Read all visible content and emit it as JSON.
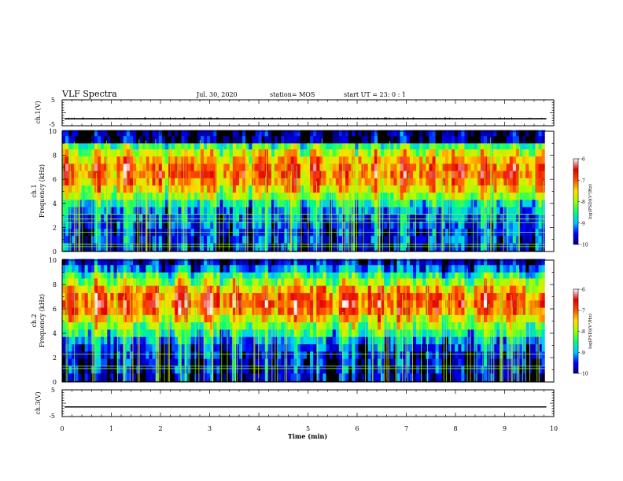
{
  "header": {
    "title": "VLF Spectra",
    "date": "Jul. 30, 2020",
    "station": "station= MOS",
    "start": "start  UT =   23: 0   : 1"
  },
  "chart_data": {
    "type": "heatmap",
    "title": "VLF Spectra",
    "xlabel": "Time  (min)",
    "xlim": [
      0,
      10
    ],
    "x_ticks": [
      "0",
      "1",
      "2",
      "3",
      "4",
      "5",
      "6",
      "7",
      "8",
      "9",
      "10"
    ],
    "colorbar": {
      "label": "log(PSD)(V²/Hz)",
      "range": [
        -10,
        -6
      ],
      "ticks": [
        "-6",
        "-7",
        "-8",
        "-9",
        "-10"
      ],
      "colormap": [
        "#000080",
        "#0000ff",
        "#00c8ff",
        "#00ff80",
        "#a0ff00",
        "#ffe000",
        "#ff5000",
        "#e00000",
        "#ffffff"
      ]
    },
    "panels": [
      {
        "name": "ch.1(V)",
        "kind": "waveform",
        "ylabel": "ch.1(V)",
        "ylim": [
          -5,
          5
        ],
        "y_ticks": [
          "5",
          "-5"
        ],
        "baseline": -2.3
      },
      {
        "name": "ch.1",
        "kind": "spectrogram",
        "ylabel_channel": "ch.1",
        "ylabel": "Frequency (kHz)",
        "ylim": [
          0,
          10
        ],
        "y_ticks": [
          "10",
          "8",
          "6",
          "4",
          "2",
          "0"
        ],
        "data_end_min": 9.82,
        "bands": [
          {
            "f_kHz": 9.8,
            "log_psd": -10.0
          },
          {
            "f_kHz": 9.3,
            "log_psd": -10.0
          },
          {
            "f_kHz": 8.7,
            "log_psd": -8.4
          },
          {
            "f_kHz": 8.2,
            "log_psd": -7.8
          },
          {
            "f_kHz": 7.6,
            "log_psd": -7.4
          },
          {
            "f_kHz": 7.0,
            "log_psd": -7.1
          },
          {
            "f_kHz": 6.4,
            "log_psd": -7.0
          },
          {
            "f_kHz": 5.8,
            "log_psd": -7.2
          },
          {
            "f_kHz": 5.2,
            "log_psd": -7.6
          },
          {
            "f_kHz": 4.6,
            "log_psd": -8.1
          },
          {
            "f_kHz": 4.0,
            "log_psd": -8.7
          },
          {
            "f_kHz": 3.4,
            "log_psd": -9.1
          },
          {
            "f_kHz": 2.8,
            "log_psd": -9.3
          },
          {
            "f_kHz": 2.2,
            "log_psd": -9.4
          },
          {
            "f_kHz": 1.6,
            "log_psd": -9.5
          },
          {
            "f_kHz": 1.0,
            "log_psd": -9.5
          },
          {
            "f_kHz": 0.4,
            "log_psd": -9.6
          }
        ],
        "tone_lines_kHz": [
          0.4,
          0.6,
          1.6,
          2.4,
          2.7,
          3.1
        ]
      },
      {
        "name": "ch.2",
        "kind": "spectrogram",
        "ylabel_channel": "ch.2",
        "ylabel": "Frequency (kHz)",
        "ylim": [
          0,
          10
        ],
        "y_ticks": [
          "10",
          "8",
          "6",
          "4",
          "2",
          "0"
        ],
        "data_end_min": 9.82,
        "bands": [
          {
            "f_kHz": 9.8,
            "log_psd": -9.6
          },
          {
            "f_kHz": 9.3,
            "log_psd": -9.1
          },
          {
            "f_kHz": 8.7,
            "log_psd": -8.4
          },
          {
            "f_kHz": 8.2,
            "log_psd": -7.9
          },
          {
            "f_kHz": 7.6,
            "log_psd": -7.3
          },
          {
            "f_kHz": 7.0,
            "log_psd": -6.9
          },
          {
            "f_kHz": 6.4,
            "log_psd": -6.8
          },
          {
            "f_kHz": 5.8,
            "log_psd": -7.0
          },
          {
            "f_kHz": 5.2,
            "log_psd": -7.5
          },
          {
            "f_kHz": 4.6,
            "log_psd": -8.0
          },
          {
            "f_kHz": 4.0,
            "log_psd": -8.5
          },
          {
            "f_kHz": 3.4,
            "log_psd": -9.0
          },
          {
            "f_kHz": 2.8,
            "log_psd": -9.3
          },
          {
            "f_kHz": 2.2,
            "log_psd": -9.5
          },
          {
            "f_kHz": 1.6,
            "log_psd": -9.6
          },
          {
            "f_kHz": 1.0,
            "log_psd": -9.6
          },
          {
            "f_kHz": 0.4,
            "log_psd": -9.7
          }
        ],
        "tone_lines_kHz": [
          1.1,
          1.3,
          2.3
        ]
      },
      {
        "name": "ch.3(V)",
        "kind": "waveform",
        "ylabel": "ch.3(V)",
        "ylim": [
          -5,
          5
        ],
        "y_ticks": [
          "5",
          "-5"
        ],
        "baseline": -1.4
      }
    ]
  }
}
